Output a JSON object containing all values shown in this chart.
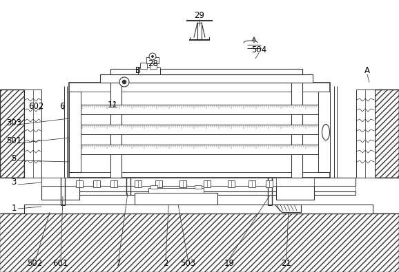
{
  "bg_color": "#ffffff",
  "line_color": "#333333",
  "figsize": [
    5.78,
    3.95
  ],
  "dpi": 100,
  "labels": [
    [
      "29",
      289,
      22
    ],
    [
      "28",
      222,
      92
    ],
    [
      "B",
      200,
      103
    ],
    [
      "504",
      375,
      72
    ],
    [
      "A",
      532,
      103
    ],
    [
      "602",
      52,
      155
    ],
    [
      "6",
      90,
      155
    ],
    [
      "11",
      163,
      152
    ],
    [
      "303",
      20,
      178
    ],
    [
      "501",
      20,
      205
    ],
    [
      "5",
      20,
      230
    ],
    [
      "3",
      20,
      265
    ],
    [
      "1",
      20,
      303
    ],
    [
      "502",
      50,
      382
    ],
    [
      "601",
      87,
      382
    ],
    [
      "7",
      172,
      382
    ],
    [
      "2",
      240,
      382
    ],
    [
      "503",
      272,
      382
    ],
    [
      "19",
      332,
      382
    ],
    [
      "21",
      415,
      382
    ]
  ]
}
